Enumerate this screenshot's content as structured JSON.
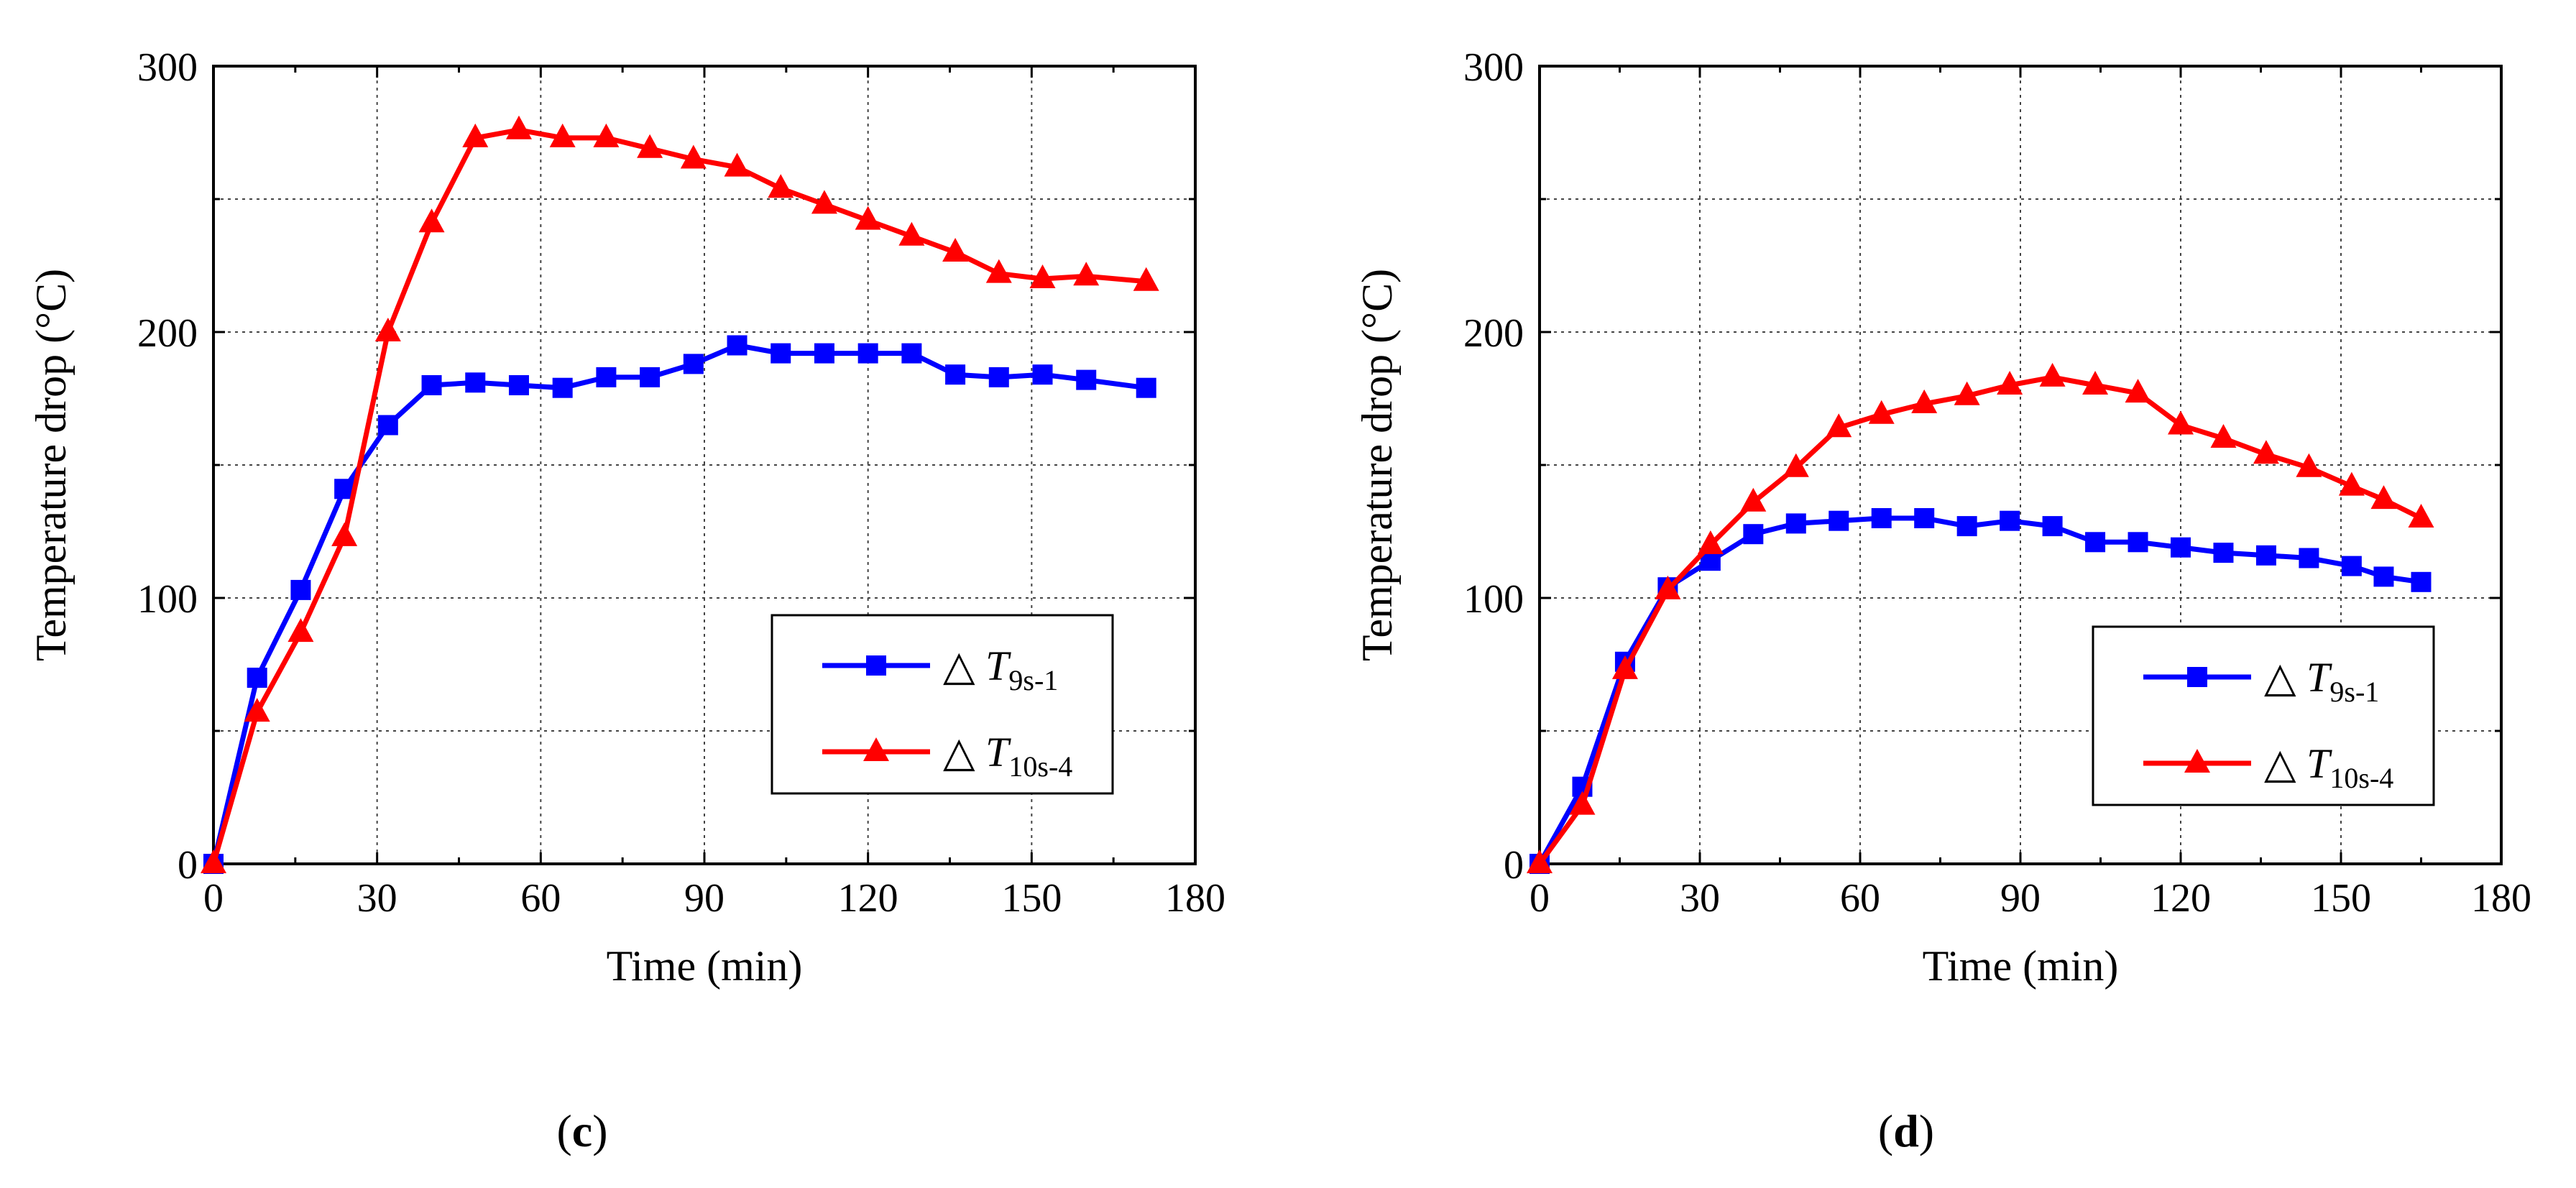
{
  "chart_data": [
    {
      "type": "line",
      "panel_label": "c",
      "xlabel": "Time (min)",
      "ylabel": "Temperature drop (°C)",
      "xlim": [
        0,
        180
      ],
      "ylim": [
        0,
        300
      ],
      "xticks": [
        0,
        30,
        60,
        90,
        120,
        150,
        180
      ],
      "yticks": [
        0,
        100,
        200,
        300
      ],
      "grid": true,
      "legend_position": "bottom-right",
      "series": [
        {
          "name": "△ T9s-1",
          "legend_prefix": "△ ",
          "legend_italic": "T",
          "legend_sub": "9s-1",
          "color": "#0000FF",
          "marker": "square",
          "x": [
            0,
            8,
            16,
            24,
            32,
            40,
            48,
            56,
            64,
            72,
            80,
            88,
            96,
            104,
            112,
            120,
            128,
            136,
            144,
            152,
            160,
            171
          ],
          "y": [
            0,
            70,
            103,
            141,
            165,
            180,
            181,
            180,
            179,
            183,
            183,
            188,
            195,
            192,
            192,
            192,
            192,
            184,
            183,
            184,
            182,
            179
          ]
        },
        {
          "name": "△ T10s-4",
          "legend_prefix": "△ ",
          "legend_italic": "T",
          "legend_sub": "10s-4",
          "color": "#FF0000",
          "marker": "triangle",
          "x": [
            0,
            8,
            16,
            24,
            32,
            40,
            48,
            56,
            64,
            72,
            80,
            88,
            96,
            104,
            112,
            120,
            128,
            136,
            144,
            152,
            160,
            171
          ],
          "y": [
            0,
            57,
            87,
            123,
            200,
            241,
            273,
            276,
            273,
            273,
            269,
            265,
            262,
            254,
            248,
            242,
            236,
            230,
            222,
            220,
            221,
            219
          ]
        }
      ]
    },
    {
      "type": "line",
      "panel_label": "d",
      "xlabel": "Time (min)",
      "ylabel": "Temperature drop (°C)",
      "xlim": [
        0,
        180
      ],
      "ylim": [
        0,
        300
      ],
      "xticks": [
        0,
        30,
        60,
        90,
        120,
        150,
        180
      ],
      "yticks": [
        0,
        100,
        200,
        300
      ],
      "grid": true,
      "legend_position": "bottom-right",
      "series": [
        {
          "name": "△ T9s-1",
          "legend_prefix": "△ ",
          "legend_italic": "T",
          "legend_sub": "9s-1",
          "color": "#0000FF",
          "marker": "square",
          "x": [
            0,
            8,
            16,
            24,
            32,
            40,
            48,
            56,
            64,
            72,
            80,
            88,
            96,
            104,
            112,
            120,
            128,
            136,
            144,
            152,
            158,
            165
          ],
          "y": [
            0,
            29,
            76,
            104,
            114,
            124,
            128,
            129,
            130,
            130,
            127,
            129,
            127,
            121,
            121,
            119,
            117,
            116,
            115,
            112,
            108,
            106
          ]
        },
        {
          "name": "△ T10s-4",
          "legend_prefix": "△ ",
          "legend_italic": "T",
          "legend_sub": "10s-4",
          "color": "#FF0000",
          "marker": "triangle",
          "x": [
            0,
            8,
            16,
            24,
            32,
            40,
            48,
            56,
            64,
            72,
            80,
            88,
            96,
            104,
            112,
            120,
            128,
            136,
            144,
            152,
            158,
            165
          ],
          "y": [
            0,
            22,
            73,
            103,
            120,
            136,
            149,
            164,
            169,
            173,
            176,
            180,
            183,
            180,
            177,
            165,
            160,
            154,
            149,
            142,
            137,
            130
          ]
        }
      ]
    }
  ]
}
